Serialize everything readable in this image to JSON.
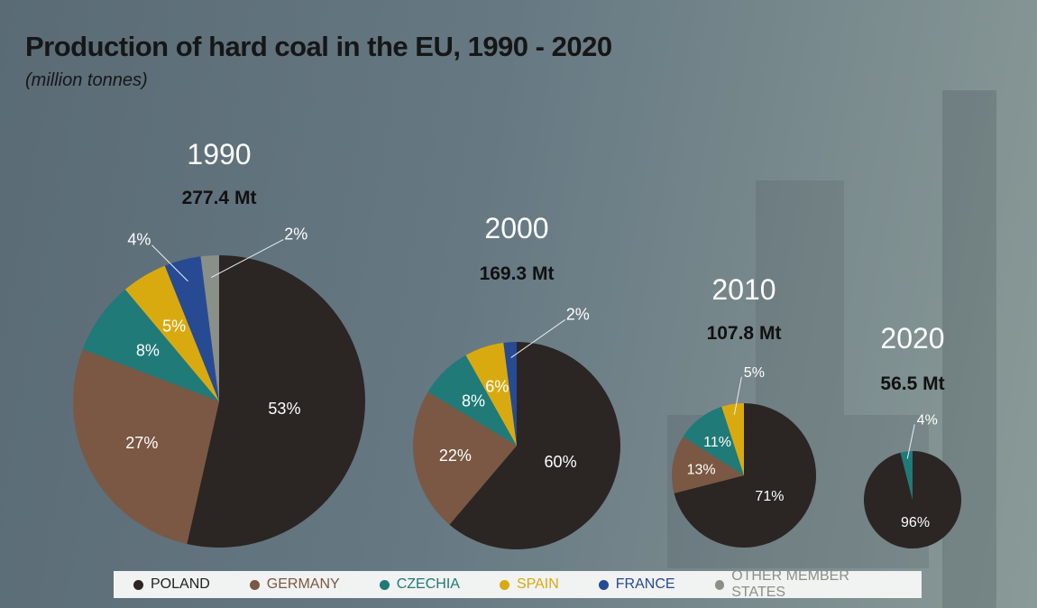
{
  "title": "Production of hard coal in the EU, 1990 - 2020",
  "subtitle": "(million tonnes)",
  "chart_data": {
    "type": "pie",
    "title": "Production of hard coal in the EU, 1990 - 2020",
    "subtitle": "(million tonnes)",
    "legend_position": "bottom",
    "categories": [
      "POLAND",
      "GERMANY",
      "CZECHIA",
      "SPAIN",
      "FRANCE",
      "OTHER MEMBER STATES"
    ],
    "colors": {
      "POLAND": "#2b2523",
      "GERMANY": "#7a5843",
      "CZECHIA": "#1f7a78",
      "SPAIN": "#d9aa10",
      "FRANCE": "#274a93",
      "OTHER MEMBER STATES": "#8a9088"
    },
    "pies": [
      {
        "year": "1990",
        "total": "277.4 Mt",
        "total_value": 277.4,
        "slices": [
          {
            "name": "POLAND",
            "value": 53
          },
          {
            "name": "GERMANY",
            "value": 27
          },
          {
            "name": "CZECHIA",
            "value": 8
          },
          {
            "name": "SPAIN",
            "value": 5
          },
          {
            "name": "FRANCE",
            "value": 4
          },
          {
            "name": "OTHER MEMBER STATES",
            "value": 2
          }
        ]
      },
      {
        "year": "2000",
        "total": "169.3 Mt",
        "total_value": 169.3,
        "slices": [
          {
            "name": "POLAND",
            "value": 60
          },
          {
            "name": "GERMANY",
            "value": 22
          },
          {
            "name": "CZECHIA",
            "value": 8
          },
          {
            "name": "SPAIN",
            "value": 6
          },
          {
            "name": "FRANCE",
            "value": 2
          }
        ]
      },
      {
        "year": "2010",
        "total": "107.8 Mt",
        "total_value": 107.8,
        "slices": [
          {
            "name": "POLAND",
            "value": 71
          },
          {
            "name": "GERMANY",
            "value": 13
          },
          {
            "name": "CZECHIA",
            "value": 11
          },
          {
            "name": "SPAIN",
            "value": 5
          }
        ]
      },
      {
        "year": "2020",
        "total": "56.5 Mt",
        "total_value": 56.5,
        "slices": [
          {
            "name": "POLAND",
            "value": 96
          },
          {
            "name": "CZECHIA",
            "value": 4
          }
        ]
      }
    ]
  }
}
